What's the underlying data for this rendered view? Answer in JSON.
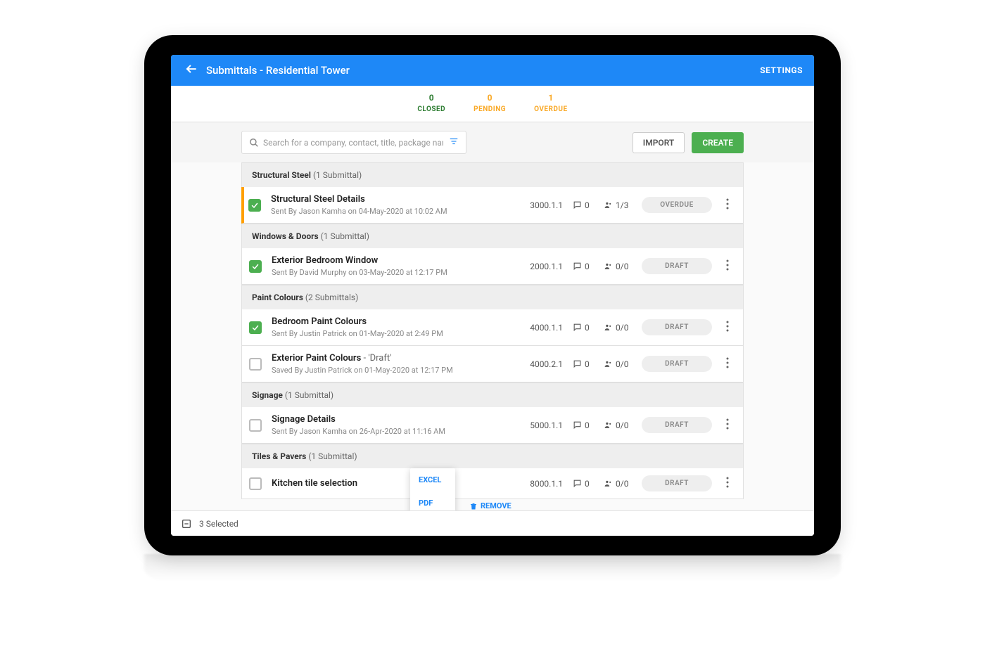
{
  "header": {
    "title": "Submittals - Residential Tower",
    "settings_label": "SETTINGS"
  },
  "status_tabs": [
    {
      "count": "0",
      "label": "CLOSED",
      "color": "#2e7d32"
    },
    {
      "count": "0",
      "label": "PENDING",
      "color": "#f9a825"
    },
    {
      "count": "1",
      "label": "OVERDUE",
      "color": "#f9a825"
    }
  ],
  "toolbar": {
    "search_placeholder": "Search for a company, contact, title, package name...",
    "import_label": "IMPORT",
    "create_label": "CREATE"
  },
  "sections": [
    {
      "name": "Structural Steel",
      "count_text": "(1 Submittal)",
      "rows": [
        {
          "checked": true,
          "overdue": true,
          "title": "Structural Steel Details",
          "suffix": "",
          "sub": "Sent By Jason Kamha on 04-May-2020 at 10:02 AM",
          "code": "3000.1.1",
          "comments": "0",
          "people": "1/3",
          "status": "OVERDUE"
        }
      ]
    },
    {
      "name": "Windows & Doors",
      "count_text": "(1 Submittal)",
      "rows": [
        {
          "checked": true,
          "overdue": false,
          "title": "Exterior Bedroom Window",
          "suffix": "",
          "sub": "Sent By David Murphy on 03-May-2020 at 12:17 PM",
          "code": "2000.1.1",
          "comments": "0",
          "people": "0/0",
          "status": "DRAFT"
        }
      ]
    },
    {
      "name": "Paint Colours",
      "count_text": "(2 Submittals)",
      "rows": [
        {
          "checked": true,
          "overdue": false,
          "title": "Bedroom Paint Colours",
          "suffix": "",
          "sub": "Sent By Justin Patrick on 01-May-2020 at 2:49 PM",
          "code": "4000.1.1",
          "comments": "0",
          "people": "0/0",
          "status": "DRAFT"
        },
        {
          "checked": false,
          "overdue": false,
          "title": "Exterior Paint Colours",
          "suffix": " - 'Draft'",
          "sub": "Saved By Justin Patrick on 01-May-2020 at 12:17 PM",
          "code": "4000.2.1",
          "comments": "0",
          "people": "0/0",
          "status": "DRAFT"
        }
      ]
    },
    {
      "name": "Signage",
      "count_text": "(1 Submittal)",
      "rows": [
        {
          "checked": false,
          "overdue": false,
          "title": "Signage Details",
          "suffix": "",
          "sub": "Sent By Jason Kamha on 26-Apr-2020 at 11:16 AM",
          "code": "5000.1.1",
          "comments": "0",
          "people": "0/0",
          "status": "DRAFT"
        }
      ]
    },
    {
      "name": "Tiles & Pavers",
      "count_text": "(1 Submittal)",
      "rows": [
        {
          "checked": false,
          "overdue": false,
          "title": "Kitchen tile selection",
          "suffix": "",
          "sub": "",
          "code": "8000.1.1",
          "comments": "0",
          "people": "0/0",
          "status": "DRAFT"
        }
      ]
    }
  ],
  "footer": {
    "selected_text": "3 Selected"
  },
  "popup": {
    "excel": "EXCEL",
    "pdf": "PDF",
    "remove": "REMOVE"
  },
  "colors": {
    "primary": "#1e88f7",
    "success": "#4caf50",
    "pill_bg": "#eeeeee",
    "pill_text": "#888888"
  }
}
